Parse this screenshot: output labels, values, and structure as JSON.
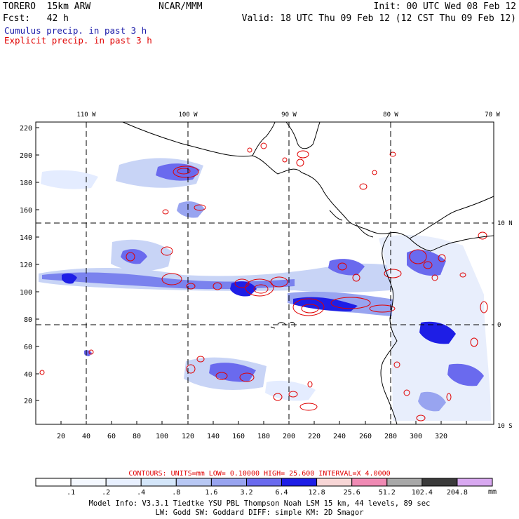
{
  "header": {
    "model": "TORERO  15km ARW",
    "org": "NCAR/MMM",
    "init": "Init: 00 UTC Wed 08 Feb 12",
    "fcst": "Fcst:   42 h",
    "valid": "Valid: 18 UTC Thu 09 Feb 12 (12 CST Thu 09 Feb 12)"
  },
  "legend": {
    "cumulus": "Cumulus precip. in past 3 h",
    "explicit": "Explicit precip. in past 3 h",
    "cumulus_color": "#1a1aa8",
    "explicit_color": "#e00000"
  },
  "axes": {
    "lon_labels": [
      "110 W",
      "100 W",
      "90 W",
      "80 W",
      "70 W"
    ],
    "lat_labels": [
      "10 N",
      "0",
      "10 S"
    ],
    "x_ticks": [
      "20",
      "40",
      "60",
      "80",
      "100",
      "120",
      "140",
      "160",
      "180",
      "200",
      "220",
      "240",
      "260",
      "280",
      "300",
      "320"
    ],
    "y_ticks": [
      "20",
      "40",
      "60",
      "80",
      "100",
      "120",
      "140",
      "160",
      "180",
      "200",
      "220"
    ]
  },
  "colorbar": {
    "labels": [
      ".1",
      ".2",
      ".4",
      ".8",
      "1.6",
      "3.2",
      "6.4",
      "12.8",
      "25.6",
      "51.2",
      "102.4",
      "204.8"
    ],
    "unit": "mm",
    "colors": [
      "#ffffff",
      "#f4f8ff",
      "#e8f0ff",
      "#d4e6fa",
      "#b8c8f4",
      "#98a4f0",
      "#6a6aee",
      "#1e1ee6",
      "#f8d6d6",
      "#f08ab4",
      "#a8a8a8",
      "#3a3a3a",
      "#d8a8f0"
    ]
  },
  "contours_text": "CONTOURS:  UNITS=mm  LOW= 0.10000      HIGH=  25.600      INTERVAL=X  4.0000",
  "model_info": {
    "line1": "Model Info: V3.3.1    Tiedtke YSU PBL  Thompson    Noah LSM  15 km,    44 levels,    89 sec",
    "line2": "LW: Godd SW: Goddard DIFF: simple KM: 2D Smagor"
  }
}
